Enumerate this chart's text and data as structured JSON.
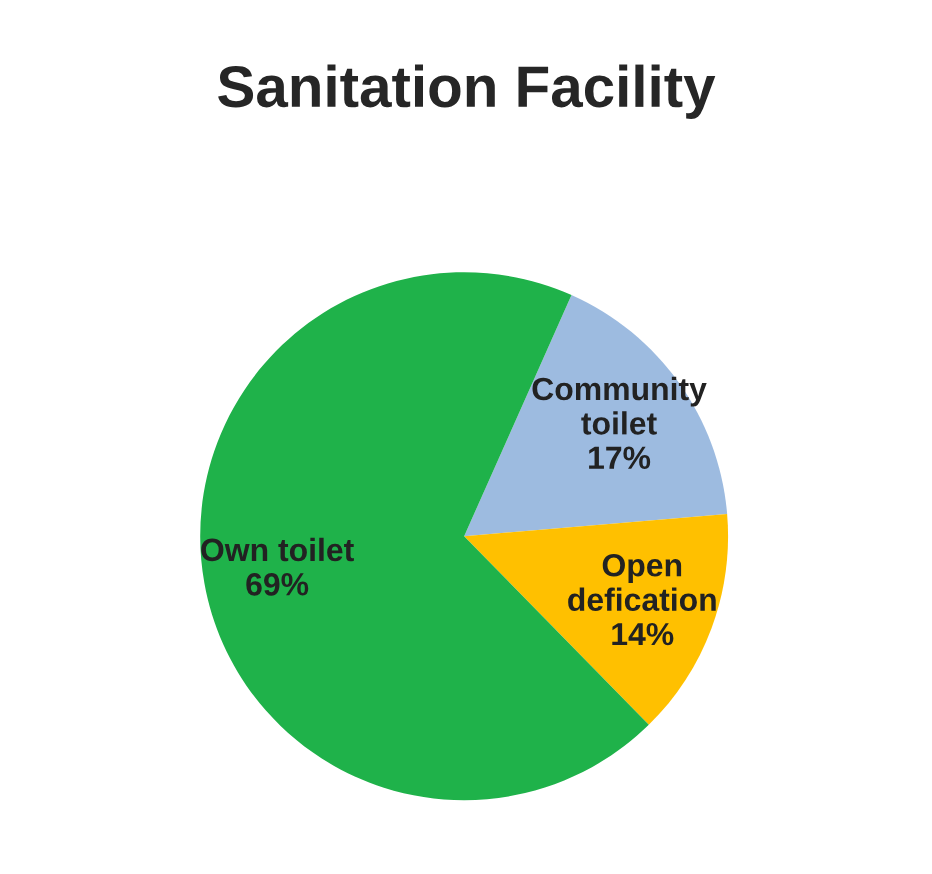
{
  "chart_data": {
    "type": "pie",
    "title": "Sanitation Facility",
    "categories": [
      "Community\ntoilet",
      "Open\ndefication",
      "Own toilet"
    ],
    "values": [
      17,
      14,
      69
    ],
    "value_labels": [
      "17%",
      "14%",
      "69%"
    ],
    "colors": [
      "#9dbbe0",
      "#ffc000",
      "#1fb24a"
    ]
  }
}
